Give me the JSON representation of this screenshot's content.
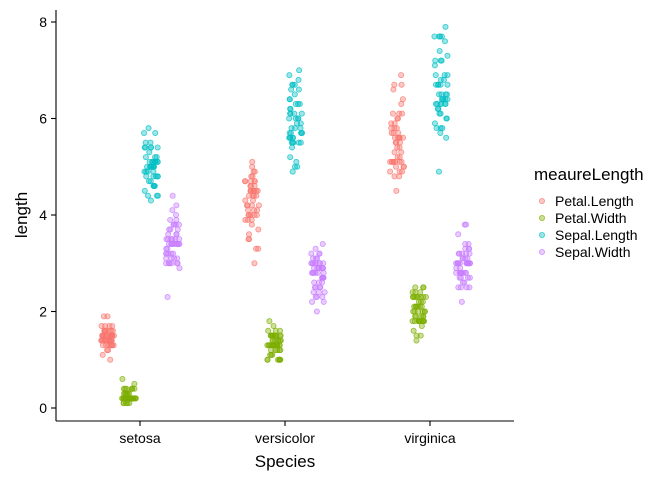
{
  "chart_data": {
    "type": "scatter",
    "subtype": "jittered strip plot",
    "title": "",
    "xlabel": "Species",
    "ylabel": "length",
    "categories": [
      "setosa",
      "versicolor",
      "virginica"
    ],
    "ylim": [
      -0.3,
      8.3
    ],
    "yticks": [
      "0",
      "2",
      "4",
      "6",
      "8"
    ],
    "grid": false,
    "legend": {
      "title": "meaureLength",
      "position": "right"
    },
    "point_alpha": 0.4,
    "series": [
      {
        "name": "Petal.Length",
        "color": "#F8766D",
        "values": [
          [
            1.4,
            1.4,
            1.3,
            1.5,
            1.4,
            1.7,
            1.4,
            1.5,
            1.4,
            1.5,
            1.5,
            1.6,
            1.4,
            1.1,
            1.2,
            1.5,
            1.3,
            1.4,
            1.7,
            1.5,
            1.7,
            1.5,
            1.0,
            1.7,
            1.9,
            1.6,
            1.6,
            1.5,
            1.4,
            1.6,
            1.6,
            1.5,
            1.5,
            1.4,
            1.5,
            1.2,
            1.3,
            1.4,
            1.3,
            1.5,
            1.3,
            1.3,
            1.3,
            1.6,
            1.9,
            1.4,
            1.6,
            1.4,
            1.5,
            1.4
          ],
          [
            4.7,
            4.5,
            4.9,
            4.0,
            4.6,
            4.5,
            4.7,
            3.3,
            4.6,
            3.9,
            3.5,
            4.2,
            4.0,
            4.7,
            3.6,
            4.4,
            4.5,
            4.1,
            4.5,
            3.9,
            4.8,
            4.0,
            4.9,
            4.7,
            4.3,
            4.4,
            4.8,
            5.0,
            4.5,
            3.5,
            3.8,
            3.7,
            3.9,
            5.1,
            4.5,
            4.5,
            4.7,
            4.4,
            4.1,
            4.0,
            4.4,
            4.6,
            4.0,
            3.3,
            4.2,
            4.2,
            4.2,
            4.3,
            3.0,
            4.1
          ],
          [
            6.0,
            5.1,
            5.9,
            5.6,
            5.8,
            6.6,
            4.5,
            6.3,
            5.8,
            6.1,
            5.1,
            5.3,
            5.5,
            5.0,
            5.1,
            5.3,
            5.5,
            6.7,
            6.9,
            5.0,
            5.7,
            4.9,
            6.7,
            4.9,
            5.7,
            6.0,
            4.8,
            4.9,
            5.6,
            5.8,
            6.1,
            6.4,
            5.6,
            5.1,
            5.6,
            6.1,
            5.6,
            5.5,
            4.8,
            5.4,
            5.6,
            5.1,
            5.1,
            5.9,
            5.7,
            5.2,
            5.0,
            5.2,
            5.4,
            5.1
          ]
        ]
      },
      {
        "name": "Petal.Width",
        "color": "#7CAE00",
        "values": [
          [
            0.2,
            0.2,
            0.2,
            0.2,
            0.2,
            0.4,
            0.3,
            0.2,
            0.2,
            0.1,
            0.2,
            0.2,
            0.1,
            0.1,
            0.2,
            0.4,
            0.4,
            0.3,
            0.3,
            0.3,
            0.2,
            0.4,
            0.2,
            0.5,
            0.2,
            0.2,
            0.4,
            0.2,
            0.2,
            0.2,
            0.2,
            0.4,
            0.1,
            0.2,
            0.2,
            0.2,
            0.2,
            0.1,
            0.2,
            0.2,
            0.3,
            0.3,
            0.2,
            0.6,
            0.4,
            0.3,
            0.2,
            0.2,
            0.2,
            0.2
          ],
          [
            1.4,
            1.5,
            1.5,
            1.3,
            1.5,
            1.3,
            1.6,
            1.0,
            1.3,
            1.4,
            1.0,
            1.5,
            1.0,
            1.4,
            1.3,
            1.4,
            1.5,
            1.0,
            1.5,
            1.1,
            1.8,
            1.3,
            1.5,
            1.2,
            1.3,
            1.4,
            1.4,
            1.7,
            1.5,
            1.0,
            1.1,
            1.0,
            1.2,
            1.6,
            1.5,
            1.6,
            1.5,
            1.3,
            1.3,
            1.3,
            1.2,
            1.4,
            1.2,
            1.0,
            1.3,
            1.2,
            1.3,
            1.3,
            1.1,
            1.3
          ],
          [
            2.5,
            1.9,
            2.1,
            1.8,
            2.2,
            2.1,
            1.7,
            1.8,
            1.8,
            2.5,
            2.0,
            1.9,
            2.1,
            2.0,
            2.4,
            2.3,
            1.8,
            2.2,
            2.3,
            1.5,
            2.3,
            2.0,
            2.0,
            1.8,
            2.1,
            1.8,
            1.8,
            1.8,
            2.1,
            1.6,
            1.9,
            2.0,
            2.2,
            1.5,
            1.4,
            2.3,
            2.4,
            1.8,
            1.8,
            2.1,
            2.4,
            2.3,
            1.9,
            2.3,
            2.5,
            2.3,
            1.9,
            2.0,
            2.3,
            1.8
          ]
        ]
      },
      {
        "name": "Sepal.Length",
        "color": "#00BFC4",
        "values": [
          [
            5.1,
            4.9,
            4.7,
            4.6,
            5.0,
            5.4,
            4.6,
            5.0,
            4.4,
            4.9,
            5.4,
            4.8,
            4.8,
            4.3,
            5.8,
            5.7,
            5.4,
            5.1,
            5.7,
            5.1,
            5.4,
            5.1,
            4.6,
            5.1,
            4.8,
            5.0,
            5.0,
            5.2,
            5.2,
            4.7,
            4.8,
            5.4,
            5.2,
            5.5,
            4.9,
            5.0,
            5.5,
            4.9,
            4.4,
            5.1,
            5.0,
            4.5,
            4.4,
            5.0,
            5.1,
            4.8,
            5.1,
            4.6,
            5.3,
            5.0
          ],
          [
            7.0,
            6.4,
            6.9,
            5.5,
            6.5,
            5.7,
            6.3,
            4.9,
            6.6,
            5.2,
            5.0,
            5.9,
            6.0,
            6.1,
            5.6,
            6.7,
            5.6,
            5.8,
            6.2,
            5.6,
            5.9,
            6.1,
            6.3,
            6.1,
            6.4,
            6.6,
            6.8,
            6.7,
            6.0,
            5.7,
            5.5,
            5.5,
            5.8,
            6.0,
            5.4,
            6.0,
            6.7,
            6.3,
            5.6,
            5.5,
            5.5,
            6.1,
            5.8,
            5.0,
            5.6,
            5.7,
            5.7,
            6.2,
            5.1,
            5.7
          ],
          [
            6.3,
            5.8,
            7.1,
            6.3,
            6.5,
            7.6,
            4.9,
            7.3,
            6.7,
            7.2,
            6.5,
            6.4,
            6.8,
            5.7,
            5.8,
            6.4,
            6.5,
            7.7,
            7.7,
            6.0,
            6.9,
            5.6,
            7.7,
            6.3,
            6.7,
            7.2,
            6.2,
            6.1,
            6.4,
            7.2,
            7.4,
            7.9,
            6.4,
            6.3,
            6.1,
            7.7,
            6.3,
            6.4,
            6.0,
            6.9,
            6.7,
            6.9,
            5.8,
            6.8,
            6.7,
            6.7,
            6.3,
            6.5,
            6.2,
            5.9
          ]
        ]
      },
      {
        "name": "Sepal.Width",
        "color": "#C77CFF",
        "values": [
          [
            3.5,
            3.0,
            3.2,
            3.1,
            3.6,
            3.9,
            3.4,
            3.4,
            2.9,
            3.1,
            3.7,
            3.4,
            3.0,
            3.0,
            4.0,
            4.4,
            3.9,
            3.5,
            3.8,
            3.8,
            3.4,
            3.7,
            3.6,
            3.3,
            3.4,
            3.0,
            3.4,
            3.5,
            3.4,
            3.2,
            3.1,
            3.4,
            4.1,
            4.2,
            3.1,
            3.2,
            3.5,
            3.6,
            3.0,
            3.4,
            3.5,
            2.3,
            3.2,
            3.5,
            3.8,
            3.0,
            3.8,
            3.2,
            3.7,
            3.3
          ],
          [
            3.2,
            3.2,
            3.1,
            2.3,
            2.8,
            2.8,
            3.3,
            2.4,
            2.9,
            2.7,
            2.0,
            3.0,
            2.2,
            2.9,
            2.9,
            3.1,
            3.0,
            2.7,
            2.2,
            2.5,
            3.2,
            2.8,
            2.5,
            2.8,
            2.9,
            3.0,
            2.8,
            3.0,
            2.9,
            2.6,
            2.4,
            2.4,
            2.7,
            2.7,
            3.0,
            3.4,
            3.1,
            2.3,
            3.0,
            2.5,
            2.6,
            3.0,
            2.6,
            2.3,
            2.7,
            3.0,
            2.9,
            2.9,
            2.5,
            2.8
          ],
          [
            3.3,
            2.7,
            3.0,
            2.9,
            3.0,
            3.0,
            2.5,
            2.9,
            2.5,
            3.6,
            3.2,
            2.7,
            3.0,
            2.5,
            2.8,
            3.2,
            3.0,
            3.8,
            2.6,
            2.2,
            3.2,
            2.8,
            2.8,
            2.7,
            3.3,
            3.2,
            2.8,
            3.0,
            2.8,
            3.0,
            2.8,
            3.8,
            2.8,
            2.8,
            2.6,
            3.0,
            3.4,
            3.1,
            3.0,
            3.1,
            3.1,
            3.1,
            2.7,
            3.2,
            3.3,
            3.0,
            2.5,
            3.0,
            3.4,
            3.0
          ]
        ]
      }
    ]
  }
}
